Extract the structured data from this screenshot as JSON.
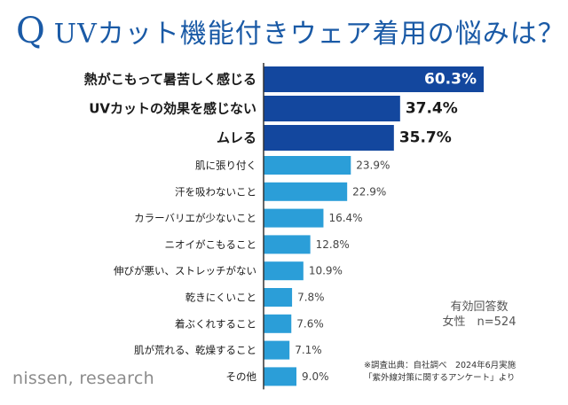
{
  "title": {
    "q": "Q",
    "text": "UVカット機能付きウェア着用の悩みは？"
  },
  "chart_data": {
    "type": "bar",
    "orientation": "horizontal",
    "categories": [
      "熱がこもって暑苦しく感じる",
      "UVカットの効果を感じない",
      "ムレる",
      "肌に張り付く",
      "汗を吸わないこと",
      "カラーバリエが少ないこと",
      "ニオイがこもること",
      "伸びが悪い、ストレッチがない",
      "乾きにくいこと",
      "着ぶくれすること",
      "肌が荒れる、乾燥すること",
      "その他"
    ],
    "values": [
      60.3,
      37.4,
      35.7,
      23.9,
      22.9,
      16.4,
      12.8,
      10.9,
      7.8,
      7.6,
      7.1,
      9.0
    ],
    "value_labels": [
      "60.3%",
      "37.4%",
      "35.7%",
      "23.9%",
      "22.9%",
      "16.4%",
      "12.8%",
      "10.9%",
      "7.8%",
      "7.6%",
      "7.1%",
      "9.0%"
    ],
    "highlight_count": 3,
    "xlim": [
      0,
      65
    ],
    "colors": {
      "highlight": "#13479e",
      "normal": "#2b9ed8",
      "axis": "#333333",
      "inside_label": "#ffffff",
      "highlight_label": "#1a1a1a",
      "normal_label": "#444444"
    }
  },
  "sample": {
    "line1": "有効回答数",
    "line2": "女性　n=524"
  },
  "source": {
    "line1": "※調査出典：自社調べ　2024年6月実施",
    "line2": "「紫外線対策に関するアンケート」より"
  },
  "brand": "nissen, research"
}
